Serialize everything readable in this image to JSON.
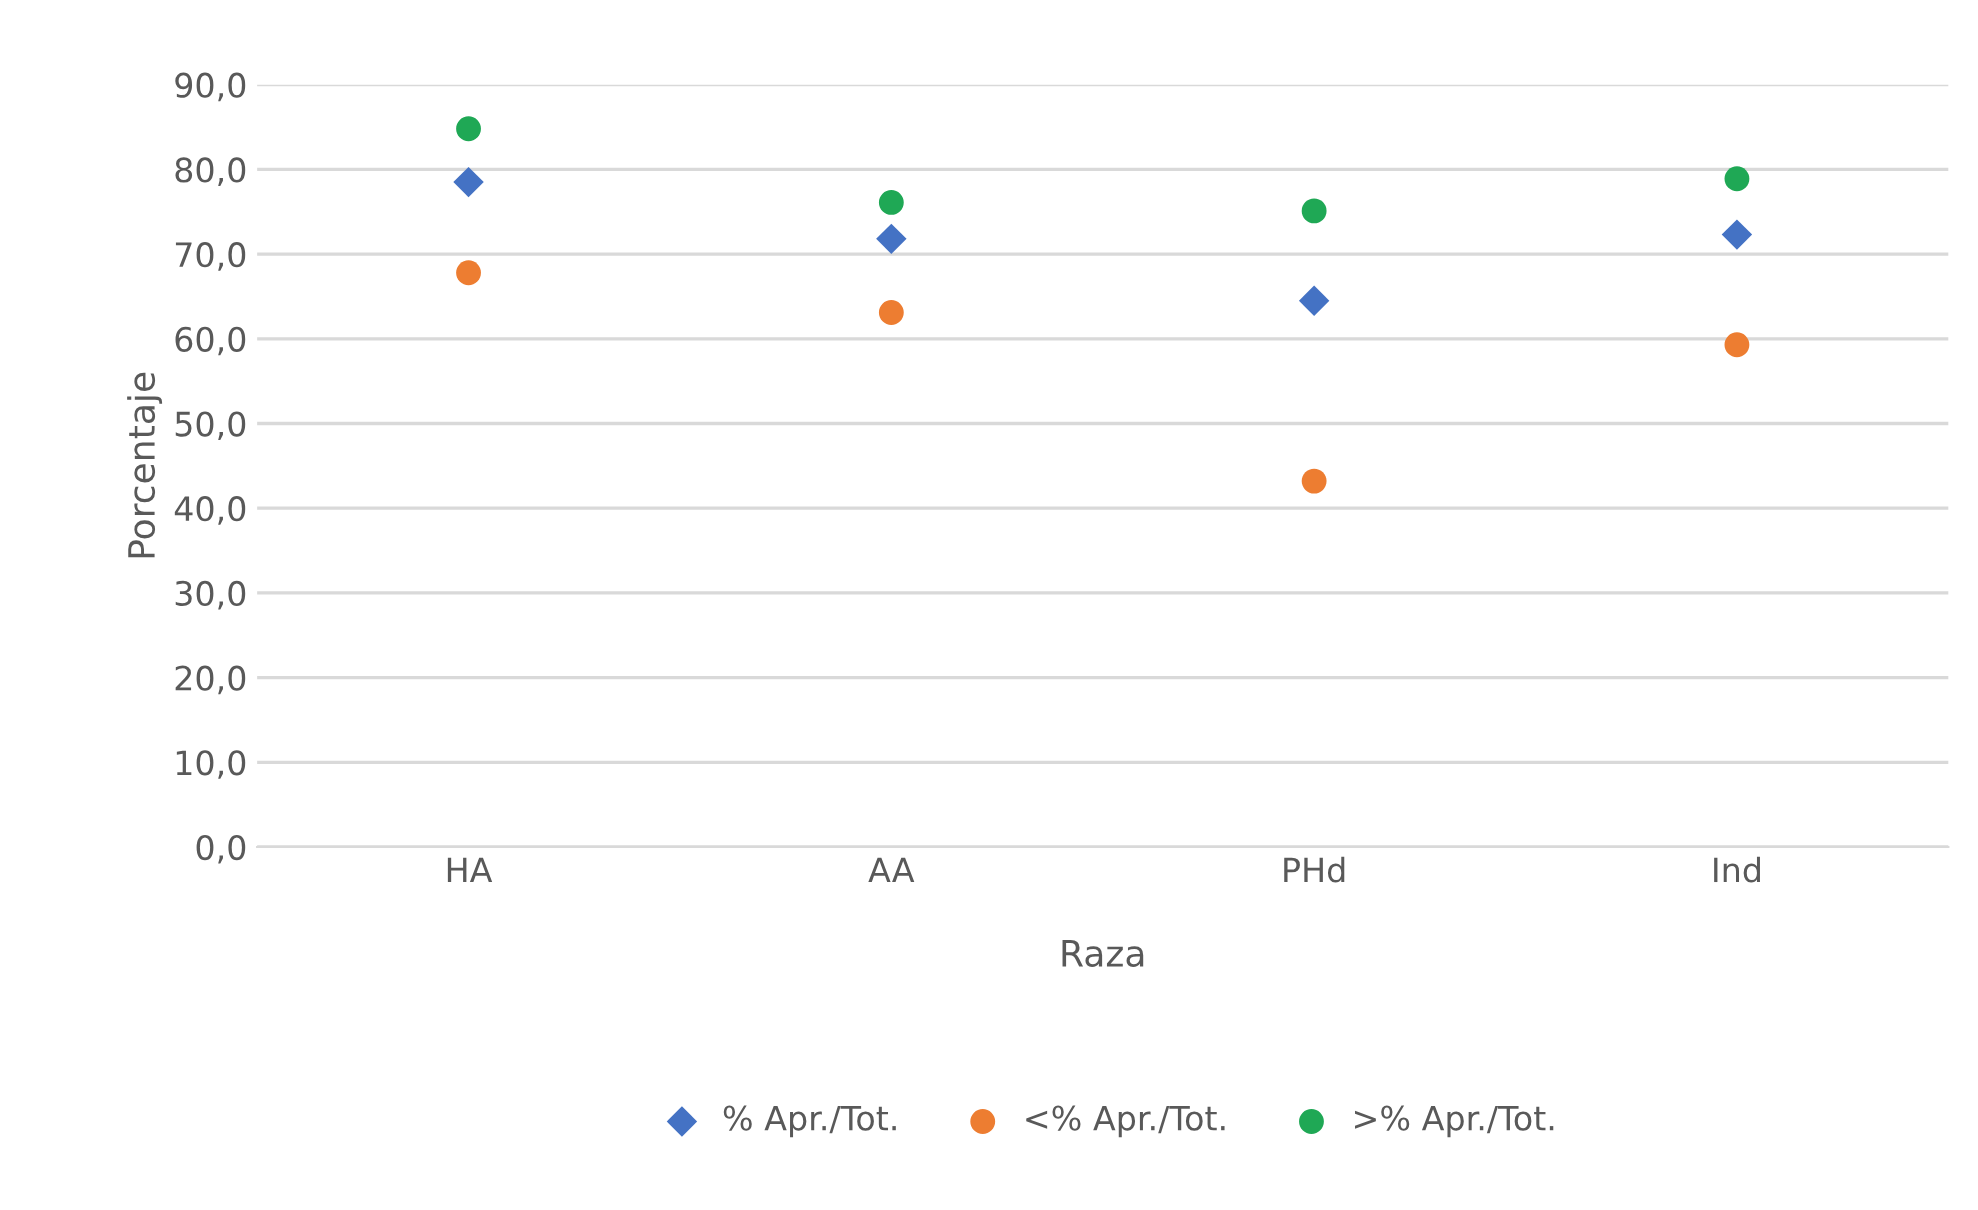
{
  "chart_data": {
    "type": "scatter",
    "xlabel": "Raza",
    "ylabel": "Porcentaje",
    "categories": [
      "HA",
      "AA",
      "PHd",
      "Ind"
    ],
    "series": [
      {
        "name": "% Apr./Tot.",
        "color": "#4472c4",
        "marker": "diamond",
        "values": [
          78.5,
          71.8,
          64.5,
          72.3
        ]
      },
      {
        "name": "<% Apr./Tot.",
        "color": "#ed7d31",
        "marker": "circle",
        "values": [
          67.8,
          63.1,
          43.2,
          59.3
        ]
      },
      {
        "name": ">% Apr./Tot.",
        "color": "#1fa855",
        "marker": "circle",
        "values": [
          84.8,
          76.1,
          75.1,
          78.9
        ]
      }
    ],
    "ylim": [
      0,
      90
    ],
    "yticks": [
      {
        "value": 0,
        "label": "0,0"
      },
      {
        "value": 10,
        "label": "10,0"
      },
      {
        "value": 20,
        "label": "20,0"
      },
      {
        "value": 30,
        "label": "30,0"
      },
      {
        "value": 40,
        "label": "40,0"
      },
      {
        "value": 50,
        "label": "50,0"
      },
      {
        "value": 60,
        "label": "60,0"
      },
      {
        "value": 70,
        "label": "70,0"
      },
      {
        "value": 80,
        "label": "80,0"
      },
      {
        "value": 90,
        "label": "90,0"
      }
    ],
    "grid": "y",
    "legend": "bottom"
  }
}
